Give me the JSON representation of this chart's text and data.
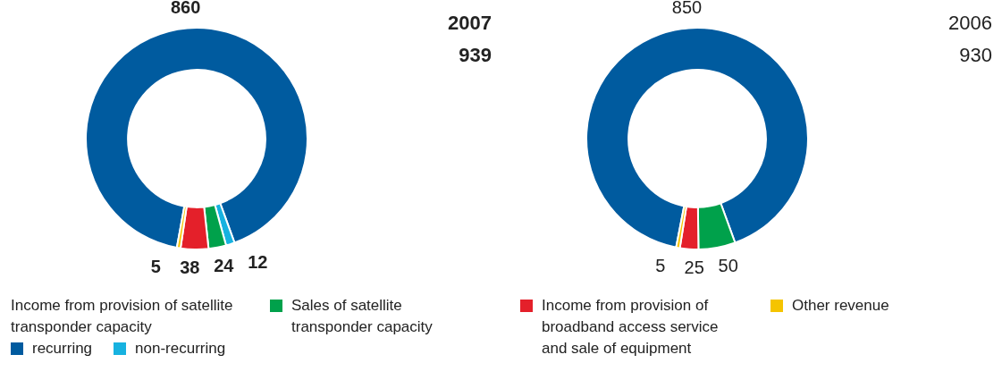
{
  "chart_data": [
    {
      "type": "donut",
      "title": "2007",
      "annotations": [
        "939"
      ],
      "legend": "bottom",
      "legend_title": "Income from provision of satellite transponder capacity",
      "data_labels": true,
      "categories": [
        "recurring",
        "non-recurring",
        "Sales of satellite transponder capacity",
        "Income from provision of broadband access service and sale of equipment",
        "Other revenue"
      ],
      "values": [
        860,
        12,
        24,
        38,
        5
      ],
      "colors": [
        "#005b9f",
        "#17b2e0",
        "#00a14b",
        "#e4202a",
        "#f5c400"
      ]
    },
    {
      "type": "donut",
      "title": "2006",
      "annotations": [
        "930"
      ],
      "data_labels": true,
      "categories": [
        null,
        null,
        null,
        null
      ],
      "values": [
        850,
        50,
        25,
        5
      ],
      "colors": [
        "#005b9f",
        "#00a14b",
        "#e4202a",
        "#f5c400"
      ]
    }
  ]
}
